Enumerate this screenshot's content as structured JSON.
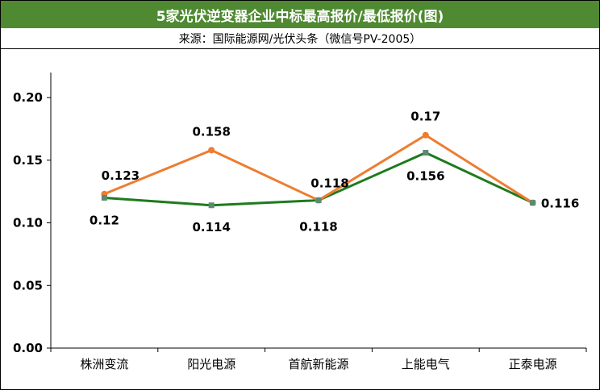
{
  "title": "5家光伏逆变器企业中标最高报价/最低报价(图)",
  "source": "来源：国际能源网/光伏头条（微信号PV-2005）",
  "colors": {
    "header_bg": "#4f8a32",
    "max_series": "#ed7d31",
    "min_series": "#1e7b1e",
    "marker_min": "#5b8a72"
  },
  "chart_data": {
    "type": "line",
    "title": "5家光伏逆变器企业中标最高报价/最低报价(图)",
    "categories": [
      "株洲变流",
      "阳光电源",
      "首航新能源",
      "上能电气",
      "正泰电源"
    ],
    "ylim": [
      0,
      0.22
    ],
    "yticks": [
      0.0,
      0.05,
      0.1,
      0.15,
      0.2
    ],
    "ytick_labels": [
      "0.00",
      "0.05",
      "0.10",
      "0.15",
      "0.20"
    ],
    "grid": false,
    "series": [
      {
        "name": "最高报价",
        "color": "#ed7d31",
        "values": [
          0.123,
          0.158,
          0.118,
          0.17,
          0.116
        ],
        "labels": [
          "0.123",
          "0.158",
          "0.118",
          "0.17",
          "0.116"
        ]
      },
      {
        "name": "最低报价",
        "color": "#1e7b1e",
        "values": [
          0.12,
          0.114,
          0.118,
          0.156,
          0.116
        ],
        "labels": [
          "0.12",
          "0.114",
          "0.118",
          "0.156",
          ""
        ]
      }
    ]
  }
}
